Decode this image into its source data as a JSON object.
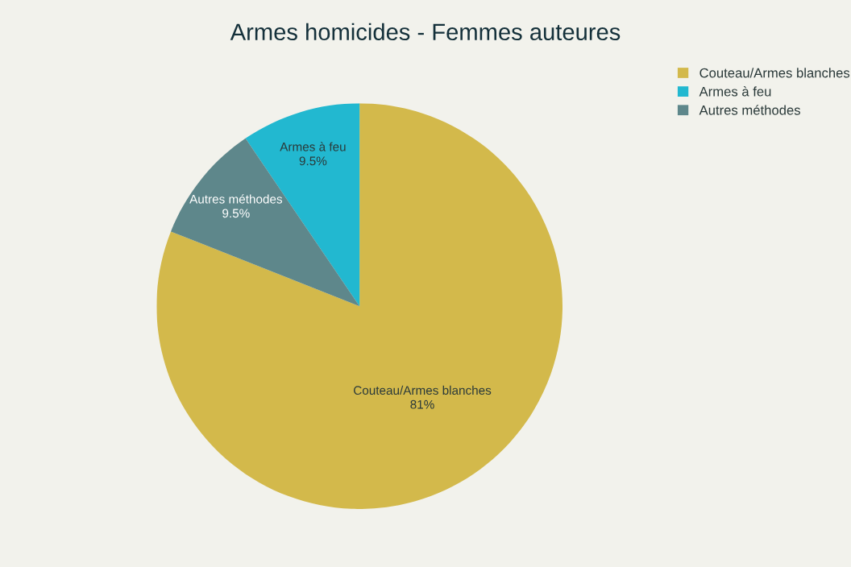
{
  "chart_data": {
    "type": "pie",
    "title": "Armes homicides - Femmes auteures",
    "categories": [
      "Couteau/Armes blanches",
      "Armes à feu",
      "Autres méthodes"
    ],
    "values": [
      81,
      9.5,
      9.5
    ],
    "value_labels": [
      "81%",
      "9.5%",
      "9.5%"
    ],
    "colors": [
      "#d3b94b",
      "#22b8d0",
      "#5e878b"
    ],
    "legend": "top right"
  }
}
